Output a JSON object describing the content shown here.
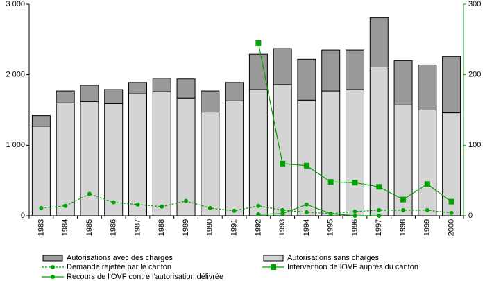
{
  "chart_data": {
    "type": "bar",
    "categories": [
      "1983",
      "1984",
      "1985",
      "1986",
      "1987",
      "1988",
      "1989",
      "1990",
      "1991",
      "1992",
      "1993",
      "1994",
      "1995",
      "1996",
      "1997",
      "1998",
      "1999",
      "2000"
    ],
    "series": [
      {
        "name": "Autorisations avec des charges",
        "color": "#999999",
        "kind": "bar",
        "values": [
          150,
          170,
          230,
          200,
          160,
          190,
          270,
          300,
          260,
          500,
          510,
          580,
          580,
          560,
          700,
          630,
          640,
          800
        ]
      },
      {
        "name": "Autorisations sans charges",
        "color": "#d4d4d4",
        "kind": "bar",
        "values": [
          1270,
          1600,
          1620,
          1590,
          1730,
          1760,
          1670,
          1470,
          1630,
          1790,
          1860,
          1640,
          1770,
          1790,
          2110,
          1570,
          1500,
          1460
        ]
      },
      {
        "name": "Demande rejetée par le canton",
        "color": "#00a000",
        "kind": "line",
        "axis": "y2",
        "style": "dashed",
        "marker": "circle",
        "values": [
          11,
          14,
          31,
          19,
          16,
          13,
          21,
          11,
          7,
          14,
          8,
          5,
          3,
          6,
          8,
          8,
          8,
          4
        ]
      },
      {
        "name": "Intervention de lOVF auprès du canton",
        "color": "#00a000",
        "kind": "line",
        "axis": "y2",
        "style": "solid",
        "marker": "square",
        "values": [
          null,
          null,
          null,
          null,
          null,
          null,
          null,
          null,
          null,
          245,
          74,
          71,
          48,
          47,
          41,
          23,
          45,
          20
        ]
      },
      {
        "name": "Recours de l'OVF contre l'autorisation délivrée",
        "color": "#00a000",
        "kind": "line",
        "axis": "y2",
        "style": "solid",
        "marker": "circle",
        "values": [
          null,
          null,
          null,
          null,
          null,
          null,
          null,
          null,
          null,
          2,
          3,
          16,
          3,
          0,
          0,
          null,
          null,
          null
        ]
      }
    ],
    "ylim": [
      0,
      3000
    ],
    "yticks": [
      0,
      {
        "value": 1000,
        "label": "1 000"
      },
      {
        "value": 2000,
        "label": "2 000"
      },
      {
        "value": 3000,
        "label": "3 000"
      }
    ],
    "y2lim": [
      0,
      300
    ],
    "y2ticks": [
      0,
      100,
      200,
      300
    ],
    "y2color": "#00a000",
    "stacked": true
  }
}
